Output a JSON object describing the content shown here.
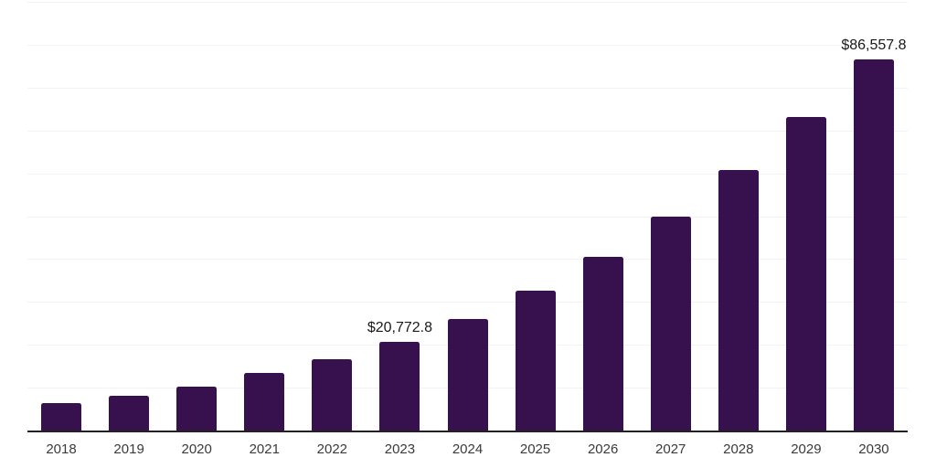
{
  "chart_data": {
    "type": "bar",
    "title": "",
    "xlabel": "",
    "ylabel": "",
    "categories": [
      "2018",
      "2019",
      "2020",
      "2021",
      "2022",
      "2023",
      "2024",
      "2025",
      "2026",
      "2027",
      "2028",
      "2029",
      "2030"
    ],
    "values": [
      6400,
      8100,
      10200,
      13400,
      16600,
      20772.8,
      26100,
      32600,
      40500,
      49900,
      60800,
      73100,
      86557.8
    ],
    "value_labels": [
      "",
      "",
      "",
      "",
      "",
      "$20,772.8",
      "",
      "",
      "",
      "",
      "",
      "",
      "$86,557.8"
    ],
    "ylim": [
      0,
      100000
    ],
    "gridline_interval": 10000,
    "grid": true,
    "legend": false,
    "y_axis_tick_labels_visible": false,
    "colors": {
      "bar": "#37114d",
      "gridline": "#f2f2f2",
      "axis": "#222222",
      "tick_label": "#3a3a3a",
      "value_label": "#1a1a1a",
      "background": "#ffffff"
    }
  }
}
